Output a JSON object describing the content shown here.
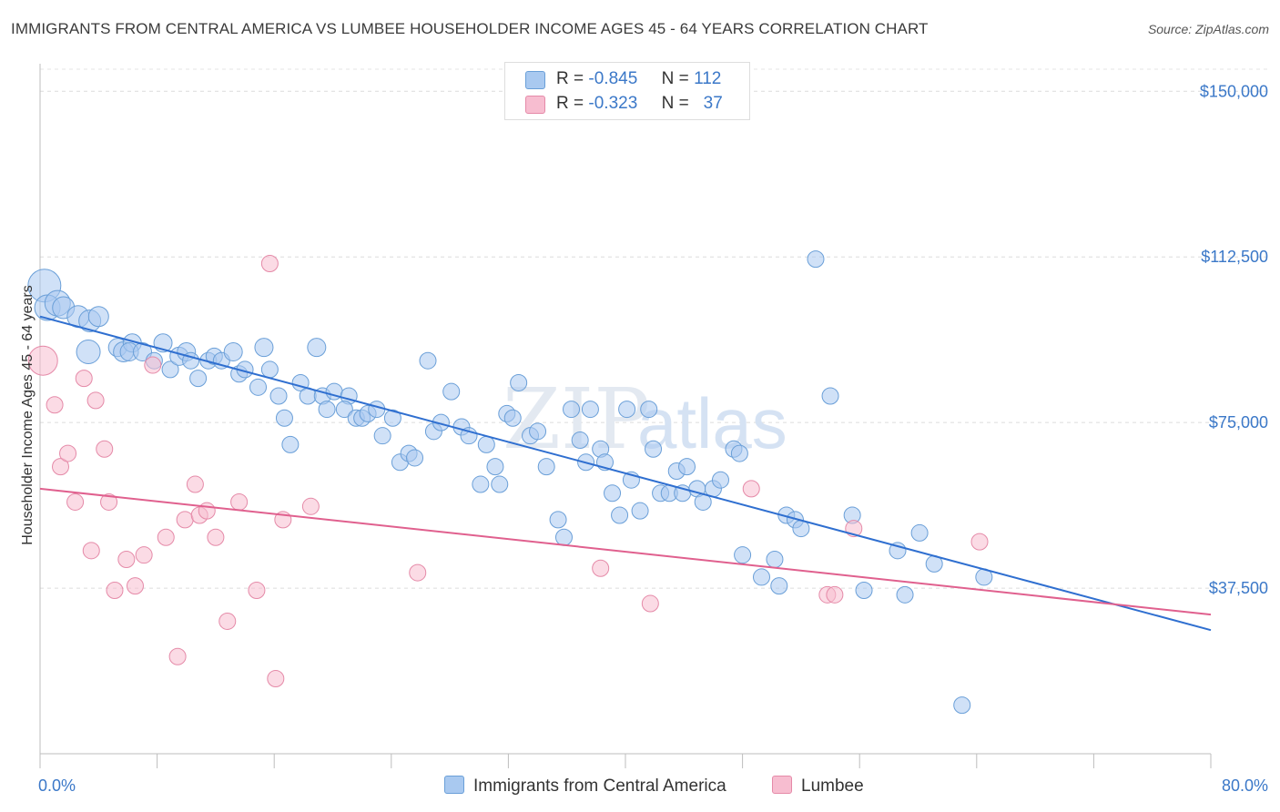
{
  "title": "IMMIGRANTS FROM CENTRAL AMERICA VS LUMBEE HOUSEHOLDER INCOME AGES 45 - 64 YEARS CORRELATION CHART",
  "source": "Source: ZipAtlas.com",
  "watermark": {
    "zip": "ZIP",
    "atlas": "atlas"
  },
  "colors": {
    "blue_fill": "#a9c9f0",
    "blue_stroke": "#6a9fd8",
    "blue_line": "#2f6fd0",
    "pink_fill": "#f7bdd0",
    "pink_stroke": "#e58aa8",
    "pink_line": "#e0608e",
    "axis_text": "#3b78c8"
  },
  "legend": {
    "rows": [
      {
        "r_label": "R =",
        "r_value": "-0.845",
        "n_label": "N =",
        "n_value": "112"
      },
      {
        "r_label": "R =",
        "r_value": "-0.323",
        "n_label": "N =",
        "n_value": "37"
      }
    ]
  },
  "chart_data": {
    "type": "scatter",
    "xlabel": "",
    "ylabel": "Householder Income Ages 45 - 64 years",
    "xlim": [
      0,
      80
    ],
    "ylim": [
      0,
      155000
    ],
    "x_tick_labels": [
      "0.0%",
      "80.0%"
    ],
    "y_ticks": [
      37500,
      75000,
      112500,
      150000
    ],
    "y_tick_labels": [
      "$37,500",
      "$75,000",
      "$112,500",
      "$150,000"
    ],
    "grid": true,
    "legend_placement": "top-center",
    "series": [
      {
        "name": "Immigrants from Central America",
        "color": "#a9c9f0",
        "R": -0.845,
        "N": 112,
        "trend": {
          "x": [
            0,
            80
          ],
          "y": [
            99000,
            28000
          ]
        },
        "points": [
          [
            0.3,
            106000,
            18
          ],
          [
            0.5,
            101000,
            14
          ],
          [
            1.2,
            102000,
            14
          ],
          [
            1.6,
            101000,
            12
          ],
          [
            2.6,
            99000,
            12
          ],
          [
            3.4,
            98000,
            12
          ],
          [
            4.0,
            99000,
            11
          ],
          [
            3.3,
            91000,
            13
          ],
          [
            5.3,
            92000,
            10
          ],
          [
            5.7,
            91000,
            11
          ],
          [
            6.3,
            93000,
            10
          ],
          [
            6.1,
            91000,
            10
          ],
          [
            7.0,
            91000,
            10
          ],
          [
            7.8,
            89000,
            9
          ],
          [
            8.4,
            93000,
            10
          ],
          [
            8.9,
            87000,
            9
          ],
          [
            9.5,
            90000,
            10
          ],
          [
            10.0,
            91000,
            10
          ],
          [
            10.3,
            89000,
            9
          ],
          [
            10.8,
            85000,
            9
          ],
          [
            11.5,
            89000,
            9
          ],
          [
            11.9,
            90000,
            9
          ],
          [
            12.4,
            89000,
            9
          ],
          [
            13.2,
            91000,
            10
          ],
          [
            13.6,
            86000,
            9
          ],
          [
            14.0,
            87000,
            9
          ],
          [
            14.9,
            83000,
            9
          ],
          [
            15.3,
            92000,
            10
          ],
          [
            15.7,
            87000,
            9
          ],
          [
            16.3,
            81000,
            9
          ],
          [
            16.7,
            76000,
            9
          ],
          [
            17.1,
            70000,
            9
          ],
          [
            17.8,
            84000,
            9
          ],
          [
            18.3,
            81000,
            9
          ],
          [
            18.9,
            92000,
            10
          ],
          [
            19.3,
            81000,
            9
          ],
          [
            19.6,
            78000,
            9
          ],
          [
            20.1,
            82000,
            9
          ],
          [
            21.1,
            81000,
            9
          ],
          [
            20.8,
            78000,
            9
          ],
          [
            21.6,
            76000,
            9
          ],
          [
            22.0,
            76000,
            9
          ],
          [
            22.4,
            77000,
            9
          ],
          [
            23.0,
            78000,
            9
          ],
          [
            23.4,
            72000,
            9
          ],
          [
            24.1,
            76000,
            9
          ],
          [
            24.6,
            66000,
            9
          ],
          [
            25.2,
            68000,
            9
          ],
          [
            25.6,
            67000,
            9
          ],
          [
            26.5,
            89000,
            9
          ],
          [
            26.9,
            73000,
            9
          ],
          [
            27.4,
            75000,
            9
          ],
          [
            28.1,
            82000,
            9
          ],
          [
            28.8,
            74000,
            9
          ],
          [
            29.3,
            72000,
            9
          ],
          [
            30.1,
            61000,
            9
          ],
          [
            30.5,
            70000,
            9
          ],
          [
            31.1,
            65000,
            9
          ],
          [
            31.4,
            61000,
            9
          ],
          [
            31.9,
            77000,
            9
          ],
          [
            32.3,
            76000,
            9
          ],
          [
            32.7,
            84000,
            9
          ],
          [
            33.5,
            72000,
            9
          ],
          [
            34.0,
            73000,
            9
          ],
          [
            34.6,
            65000,
            9
          ],
          [
            35.4,
            53000,
            9
          ],
          [
            35.8,
            49000,
            9
          ],
          [
            36.3,
            78000,
            9
          ],
          [
            36.9,
            71000,
            9
          ],
          [
            37.3,
            66000,
            9
          ],
          [
            37.6,
            78000,
            9
          ],
          [
            38.3,
            69000,
            9
          ],
          [
            38.6,
            66000,
            9
          ],
          [
            39.1,
            59000,
            9
          ],
          [
            39.6,
            54000,
            9
          ],
          [
            40.1,
            78000,
            9
          ],
          [
            40.4,
            62000,
            9
          ],
          [
            41.0,
            55000,
            9
          ],
          [
            41.6,
            78000,
            9
          ],
          [
            41.9,
            69000,
            9
          ],
          [
            42.4,
            59000,
            9
          ],
          [
            43.0,
            59000,
            9
          ],
          [
            43.5,
            64000,
            9
          ],
          [
            43.9,
            59000,
            9
          ],
          [
            44.2,
            65000,
            9
          ],
          [
            44.9,
            60000,
            9
          ],
          [
            45.3,
            57000,
            9
          ],
          [
            46.0,
            60000,
            9
          ],
          [
            46.5,
            62000,
            9
          ],
          [
            47.4,
            69000,
            9
          ],
          [
            47.8,
            68000,
            9
          ],
          [
            48.0,
            45000,
            9
          ],
          [
            49.3,
            40000,
            9
          ],
          [
            50.2,
            44000,
            9
          ],
          [
            50.5,
            38000,
            9
          ],
          [
            51.0,
            54000,
            9
          ],
          [
            51.6,
            53000,
            9
          ],
          [
            52.0,
            51000,
            9
          ],
          [
            53.0,
            112000,
            9
          ],
          [
            54.0,
            81000,
            9
          ],
          [
            55.5,
            54000,
            9
          ],
          [
            56.3,
            37000,
            9
          ],
          [
            58.6,
            46000,
            9
          ],
          [
            59.1,
            36000,
            9
          ],
          [
            60.1,
            50000,
            9
          ],
          [
            61.1,
            43000,
            9
          ],
          [
            64.5,
            40000,
            9
          ],
          [
            63.0,
            11000,
            9
          ]
        ]
      },
      {
        "name": "Lumbee",
        "color": "#f7bdd0",
        "R": -0.323,
        "N": 37,
        "trend": {
          "x": [
            0,
            80
          ],
          "y": [
            60000,
            31500
          ]
        },
        "points": [
          [
            0.2,
            89000,
            16
          ],
          [
            1.0,
            79000,
            9
          ],
          [
            1.4,
            65000,
            9
          ],
          [
            1.9,
            68000,
            9
          ],
          [
            2.4,
            57000,
            9
          ],
          [
            3.0,
            85000,
            9
          ],
          [
            3.5,
            46000,
            9
          ],
          [
            3.8,
            80000,
            9
          ],
          [
            4.4,
            69000,
            9
          ],
          [
            4.7,
            57000,
            9
          ],
          [
            5.1,
            37000,
            9
          ],
          [
            5.9,
            44000,
            9
          ],
          [
            6.5,
            38000,
            9
          ],
          [
            7.1,
            45000,
            9
          ],
          [
            7.7,
            88000,
            9
          ],
          [
            8.6,
            49000,
            9
          ],
          [
            9.4,
            22000,
            9
          ],
          [
            9.9,
            53000,
            9
          ],
          [
            10.6,
            61000,
            9
          ],
          [
            10.9,
            54000,
            9
          ],
          [
            11.4,
            55000,
            9
          ],
          [
            12.0,
            49000,
            9
          ],
          [
            12.8,
            30000,
            9
          ],
          [
            13.6,
            57000,
            9
          ],
          [
            14.8,
            37000,
            9
          ],
          [
            15.7,
            111000,
            9
          ],
          [
            16.1,
            17000,
            9
          ],
          [
            16.6,
            53000,
            9
          ],
          [
            18.5,
            56000,
            9
          ],
          [
            25.8,
            41000,
            9
          ],
          [
            38.3,
            42000,
            9
          ],
          [
            41.7,
            34000,
            9
          ],
          [
            48.6,
            60000,
            9
          ],
          [
            53.8,
            36000,
            9
          ],
          [
            55.6,
            51000,
            9
          ],
          [
            64.2,
            48000,
            9
          ],
          [
            54.3,
            36000,
            9
          ]
        ]
      }
    ]
  }
}
